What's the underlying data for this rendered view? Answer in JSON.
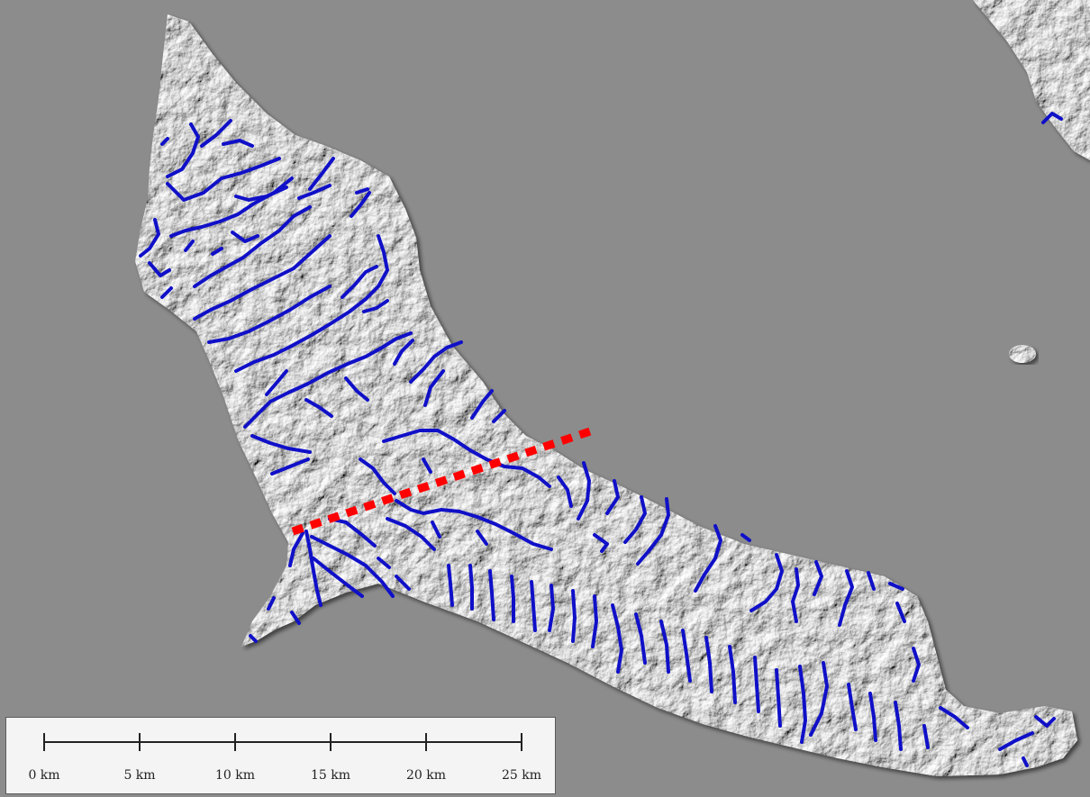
{
  "map": {
    "background_color": "#8c8c8c",
    "relief_colors": [
      "#efefef",
      "#b8b8b8",
      "#555555"
    ],
    "stream_color": "#1010c8",
    "transect_color": "#ff0000",
    "features": [
      "island-relief",
      "stream-network",
      "transect-line",
      "islet",
      "coast-fragment"
    ]
  },
  "scale_bar": {
    "ticks": [
      {
        "label": "0 km",
        "km": 0
      },
      {
        "label": "5 km",
        "km": 5
      },
      {
        "label": "10 km",
        "km": 10
      },
      {
        "label": "15 km",
        "km": 15
      },
      {
        "label": "20 km",
        "km": 20
      },
      {
        "label": "25 km",
        "km": 25
      }
    ]
  }
}
